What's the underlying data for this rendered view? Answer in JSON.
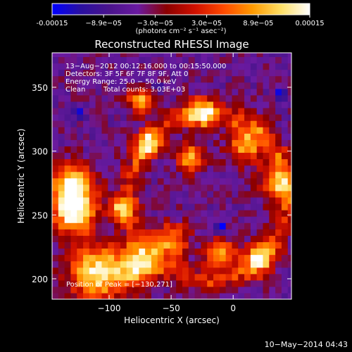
{
  "chart_data": {
    "type": "heatmap",
    "title": "Reconstructed RHESSI Image",
    "xlabel": "Heliocentric X (arcsec)",
    "ylabel": "Heliocentric Y (arcsec)",
    "xlim": [
      -146,
      47
    ],
    "ylim": [
      184,
      377
    ],
    "x_ticks": [
      -100,
      -50,
      0
    ],
    "y_ticks": [
      200,
      250,
      300,
      350
    ],
    "colorbar": {
      "range": [
        -0.00015,
        0.00015
      ],
      "ticks": [
        "-0.00015",
        "−8.9e−05",
        "−3.0e−05",
        "3.0e−05",
        "8.9e−05",
        "0.00015"
      ],
      "unit_label": "(photons cm⁻² s⁻¹ asec⁻²)"
    },
    "colormap": [
      "#0000ff",
      "#2a10a0",
      "#4a148c",
      "#6a1aa0",
      "#8b0000",
      "#d01000",
      "#ff4a00",
      "#ff9a00",
      "#ffe066",
      "#ffffff"
    ],
    "annotations": {
      "time_range": "13−Aug−2012 00:12:16.000 to 00:15:50.000",
      "detectors": "Detectors: 3F 5F 6F 7F 8F 9F, Att 0",
      "energy": "Energy Range: 25.0 − 50.0 keV",
      "clean_label": "Clean",
      "total_counts": "Total counts: 3.03E+03",
      "peak": "Position of Peak = [−130,271]"
    },
    "peak_position": [
      -130,
      271
    ],
    "features": [
      {
        "kind": "bright_blob",
        "cx": -130,
        "cy": 271,
        "r": 18,
        "level": 1.0
      },
      {
        "kind": "bright_blob",
        "cx": -128,
        "cy": 250,
        "r": 16,
        "level": 0.85
      },
      {
        "kind": "bright_blob",
        "cx": -110,
        "cy": 205,
        "r": 22,
        "level": 0.9
      },
      {
        "kind": "bright_blob",
        "cx": -78,
        "cy": 210,
        "r": 16,
        "level": 0.8
      },
      {
        "kind": "bright_blob",
        "cx": -35,
        "cy": 295,
        "r": 10,
        "level": 0.78
      },
      {
        "kind": "bright_blob",
        "cx": -68,
        "cy": 305,
        "r": 10,
        "level": 0.66
      },
      {
        "kind": "bright_blob",
        "cx": -75,
        "cy": 340,
        "r": 10,
        "level": 0.62
      },
      {
        "kind": "bright_blob",
        "cx": -25,
        "cy": 330,
        "r": 12,
        "level": 0.68
      },
      {
        "kind": "bright_blob",
        "cx": 10,
        "cy": 305,
        "r": 14,
        "level": 0.64
      },
      {
        "kind": "bright_blob",
        "cx": 35,
        "cy": 275,
        "r": 14,
        "level": 0.6
      },
      {
        "kind": "bright_blob",
        "cx": -90,
        "cy": 255,
        "r": 10,
        "level": 0.55
      },
      {
        "kind": "bright_blob",
        "cx": -50,
        "cy": 230,
        "r": 14,
        "level": 0.6
      },
      {
        "kind": "bright_blob",
        "cx": -10,
        "cy": 220,
        "r": 12,
        "level": 0.55
      },
      {
        "kind": "bright_blob",
        "cx": 20,
        "cy": 215,
        "r": 12,
        "level": 0.6
      },
      {
        "kind": "dark_spot",
        "cx": -10,
        "cy": 240,
        "r": 4,
        "level": -1.0
      },
      {
        "kind": "dark_spot",
        "cx": -125,
        "cy": 330,
        "r": 5,
        "level": -0.7
      },
      {
        "kind": "dark_spot",
        "cx": -60,
        "cy": 350,
        "r": 4,
        "level": -0.6
      },
      {
        "kind": "dark_spot",
        "cx": 38,
        "cy": 345,
        "r": 4,
        "level": -0.7
      }
    ]
  },
  "footer": {
    "date": "10−May−2014 04:43"
  }
}
